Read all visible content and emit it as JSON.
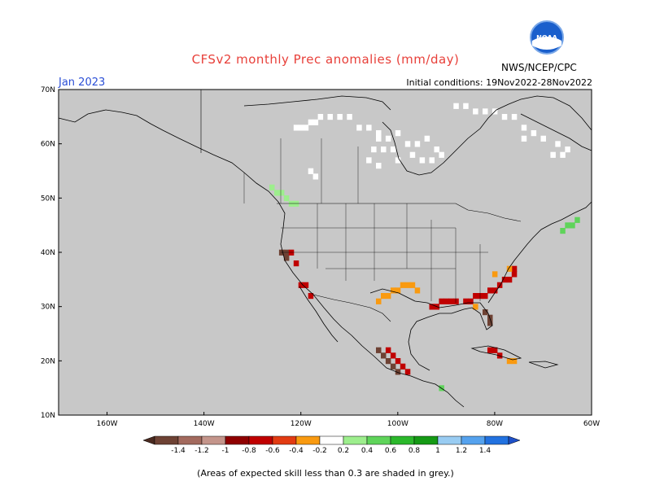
{
  "header": {
    "title": "CFSv2 monthly Prec anomalies (mm/day)",
    "agency": "NWS/NCEP/CPC",
    "month": "Jan 2023",
    "initial_conditions": "Initial conditions: 19Nov2022-28Nov2022",
    "logo_text": "NOAA"
  },
  "map": {
    "projection": "lat-lon",
    "lon_range": [
      -170,
      -60
    ],
    "lat_range": [
      10,
      70
    ],
    "lat_ticks": [
      "10N",
      "20N",
      "30N",
      "40N",
      "50N",
      "60N",
      "70N"
    ],
    "lon_ticks": [
      "160W",
      "140W",
      "120W",
      "100W",
      "80W",
      "60W"
    ],
    "lat_values": [
      10,
      20,
      30,
      40,
      50,
      60,
      70
    ],
    "lon_values": [
      -160,
      -140,
      -120,
      -100,
      -80,
      -60
    ],
    "background_color": "#c8c8c8",
    "border_color": "#000000"
  },
  "colorbar": {
    "labels": [
      "-1.4",
      "-1.2",
      "-1",
      "-0.8",
      "-0.6",
      "-0.4",
      "-0.2",
      "0.2",
      "0.4",
      "0.6",
      "0.8",
      "1",
      "1.2",
      "1.4"
    ],
    "colors": [
      "#6e4234",
      "#a36a5e",
      "#c4958b",
      "#8f0000",
      "#c00000",
      "#e23b12",
      "#f99a10",
      "#ffffff",
      "#9dee8d",
      "#5fd45a",
      "#2bb82b",
      "#159a15",
      "#99ccf2",
      "#55a2ee",
      "#2272e0"
    ],
    "min_color": "#4a2a20",
    "max_color": "#1e50c8"
  },
  "footer": {
    "note": "(Areas of expected skill less than 0.3 are shaded in grey.)"
  },
  "anomaly_regions": [
    {
      "name": "wet-northern-canada",
      "color": "#ffffff",
      "cells": [
        [
          -121,
          63
        ],
        [
          -120,
          63
        ],
        [
          -119,
          63
        ],
        [
          -118,
          64
        ],
        [
          -117,
          64
        ],
        [
          -116,
          65
        ],
        [
          -114,
          65
        ],
        [
          -112,
          65
        ],
        [
          -110,
          65
        ],
        [
          -108,
          63
        ],
        [
          -106,
          63
        ],
        [
          -104,
          62
        ],
        [
          -102,
          61
        ],
        [
          -100,
          62
        ],
        [
          -98,
          60
        ],
        [
          -96,
          60
        ],
        [
          -94,
          61
        ],
        [
          -92,
          59
        ],
        [
          -91,
          58
        ],
        [
          -93,
          57
        ],
        [
          -95,
          57
        ],
        [
          -97,
          58
        ],
        [
          -104,
          61
        ],
        [
          -106,
          57
        ],
        [
          -104,
          56
        ],
        [
          -100,
          57
        ],
        [
          -101,
          59
        ],
        [
          -103,
          59
        ],
        [
          -105,
          59
        ]
      ]
    },
    {
      "name": "wet-canada-small",
      "color": "#ffffff",
      "cells": [
        [
          -118,
          55
        ],
        [
          -117,
          54
        ]
      ]
    },
    {
      "name": "wet-hudson-east",
      "color": "#ffffff",
      "cells": [
        [
          -88,
          67
        ],
        [
          -86,
          67
        ],
        [
          -84,
          66
        ],
        [
          -82,
          66
        ],
        [
          -80,
          66
        ],
        [
          -78,
          65
        ],
        [
          -76,
          65
        ],
        [
          -74,
          63
        ],
        [
          -72,
          62
        ],
        [
          -66,
          58
        ],
        [
          -68,
          58
        ],
        [
          -65,
          59
        ],
        [
          -67,
          60
        ]
      ]
    },
    {
      "name": "wet-labrador",
      "color": "#ffffff",
      "cells": [
        [
          -74,
          61
        ],
        [
          -70,
          61
        ]
      ]
    },
    {
      "name": "light-green-bc",
      "color": "#9dee8d",
      "cells": [
        [
          -126,
          52
        ],
        [
          -125,
          51
        ],
        [
          -124,
          51
        ],
        [
          -123,
          50
        ],
        [
          -122,
          49
        ],
        [
          -121,
          49
        ]
      ]
    },
    {
      "name": "dry-california",
      "color": "#6e4234",
      "cells": [
        [
          -124,
          40
        ],
        [
          -123,
          39
        ],
        [
          -123,
          40
        ]
      ]
    },
    {
      "name": "dry-california-red",
      "color": "#c00000",
      "cells": [
        [
          -122,
          40
        ],
        [
          -121,
          38
        ],
        [
          -120,
          34
        ],
        [
          -119,
          34
        ],
        [
          -118,
          32
        ]
      ]
    },
    {
      "name": "dry-gulf-coast",
      "color": "#c00000",
      "cells": [
        [
          -93,
          30
        ],
        [
          -92,
          30
        ],
        [
          -91,
          31
        ],
        [
          -90,
          31
        ],
        [
          -89,
          31
        ],
        [
          -88,
          31
        ],
        [
          -86,
          31
        ],
        [
          -85,
          31
        ],
        [
          -84,
          32
        ],
        [
          -83,
          32
        ],
        [
          -82,
          32
        ],
        [
          -81,
          33
        ],
        [
          -80,
          33
        ],
        [
          -79,
          34
        ],
        [
          -78,
          35
        ],
        [
          -77,
          35
        ],
        [
          -76,
          36
        ],
        [
          -76,
          37
        ]
      ]
    },
    {
      "name": "dry-gulf-orange",
      "color": "#f99a10",
      "cells": [
        [
          -104,
          31
        ],
        [
          -103,
          32
        ],
        [
          -102,
          32
        ],
        [
          -101,
          33
        ],
        [
          -100,
          33
        ],
        [
          -99,
          34
        ],
        [
          -98,
          34
        ],
        [
          -97,
          34
        ],
        [
          -96,
          33
        ],
        [
          -84,
          30
        ],
        [
          -80,
          36
        ],
        [
          -77,
          37
        ]
      ]
    },
    {
      "name": "dry-florida",
      "color": "#6e4234",
      "cells": [
        [
          -82,
          29
        ],
        [
          -81,
          28
        ],
        [
          -81,
          27
        ]
      ]
    },
    {
      "name": "dry-mexico",
      "color": "#6e4234",
      "cells": [
        [
          -104,
          22
        ],
        [
          -103,
          21
        ],
        [
          -102,
          20
        ],
        [
          -101,
          19
        ],
        [
          -100,
          18
        ]
      ]
    },
    {
      "name": "dry-mexico-red",
      "color": "#c00000",
      "cells": [
        [
          -102,
          22
        ],
        [
          -101,
          21
        ],
        [
          -100,
          20
        ],
        [
          -99,
          19
        ],
        [
          -98,
          18
        ]
      ]
    },
    {
      "name": "dry-caribbean",
      "color": "#c00000",
      "cells": [
        [
          -81,
          22
        ],
        [
          -80,
          22
        ],
        [
          -79,
          21
        ]
      ]
    },
    {
      "name": "dry-caribbean-orange",
      "color": "#f99a10",
      "cells": [
        [
          -77,
          20
        ],
        [
          -76,
          20
        ]
      ]
    },
    {
      "name": "wet-atlantic-green",
      "color": "#5fd45a",
      "cells": [
        [
          -66,
          44
        ],
        [
          -65,
          45
        ],
        [
          -64,
          45
        ],
        [
          -63,
          46
        ]
      ]
    },
    {
      "name": "wet-central-america",
      "color": "#5fd45a",
      "cells": [
        [
          -91,
          15
        ]
      ]
    }
  ]
}
